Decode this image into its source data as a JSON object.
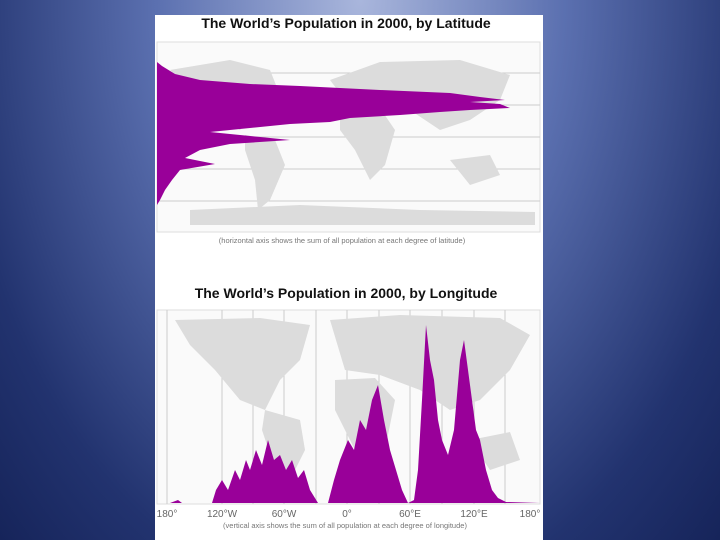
{
  "latitude_chart": {
    "title": "The World’s Population in 2000, by Latitude",
    "caption": "(horizontal axis shows the sum of all population at each degree of latitude)"
  },
  "longitude_chart": {
    "title": "The World’s Population in 2000, by Longitude",
    "caption": "(vertical axis shows the sum of all population at each degree of longitude)",
    "tick_labels": [
      "180°",
      "120°W",
      "60°W",
      "0°",
      "60°E",
      "120°E",
      "180°"
    ]
  }
}
